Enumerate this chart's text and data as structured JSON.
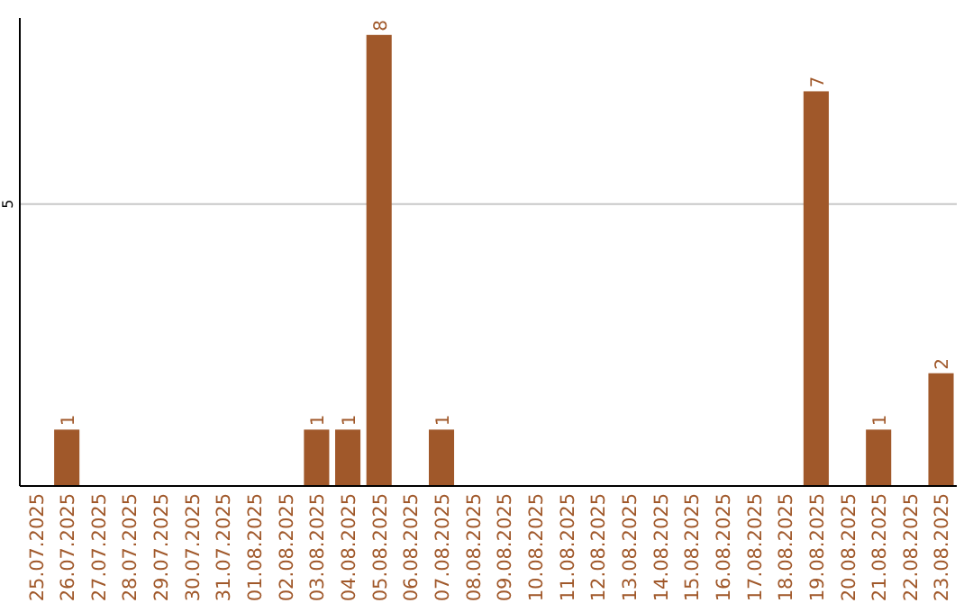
{
  "chart_data": {
    "type": "bar",
    "categories": [
      "25.07.2025",
      "26.07.2025",
      "27.07.2025",
      "28.07.2025",
      "29.07.2025",
      "30.07.2025",
      "31.07.2025",
      "01.08.2025",
      "02.08.2025",
      "03.08.2025",
      "04.08.2025",
      "05.08.2025",
      "06.08.2025",
      "07.08.2025",
      "08.08.2025",
      "09.08.2025",
      "10.08.2025",
      "11.08.2025",
      "12.08.2025",
      "13.08.2025",
      "14.08.2025",
      "15.08.2025",
      "16.08.2025",
      "17.08.2025",
      "18.08.2025",
      "19.08.2025",
      "20.08.2025",
      "21.08.2025",
      "22.08.2025",
      "23.08.2025"
    ],
    "values": [
      0,
      1,
      0,
      0,
      0,
      0,
      0,
      0,
      0,
      1,
      1,
      8,
      0,
      1,
      0,
      0,
      0,
      0,
      0,
      0,
      0,
      0,
      0,
      0,
      0,
      7,
      0,
      1,
      0,
      2
    ],
    "value_labels": [
      null,
      "1",
      null,
      null,
      null,
      null,
      null,
      null,
      null,
      "1",
      "1",
      "8",
      null,
      "1",
      null,
      null,
      null,
      null,
      null,
      null,
      null,
      null,
      null,
      null,
      null,
      "7",
      null,
      "1",
      null,
      "2"
    ],
    "color": "#a0582a",
    "ylim": [
      0,
      8.3
    ],
    "yticks": [
      5
    ],
    "grid": "y"
  }
}
